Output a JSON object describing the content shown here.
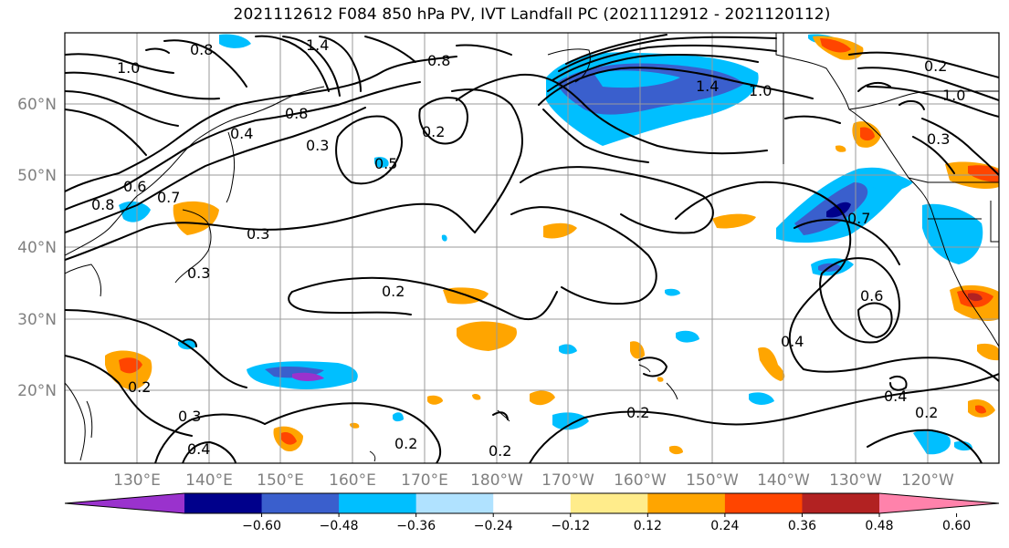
{
  "title": "2021112612 F084 850 hPa PV, IVT Landfall PC (2021112912 - 2021120112)",
  "lat_labels": [
    "60°N",
    "50°N",
    "40°N",
    "30°N",
    "20°N"
  ],
  "lon_labels": [
    "130°E",
    "140°E",
    "150°E",
    "160°E",
    "170°E",
    "180°W",
    "170°W",
    "160°W",
    "150°W",
    "140°W",
    "130°W",
    "120°W"
  ],
  "colorbar": {
    "ticks": [
      "−0.60",
      "−0.48",
      "−0.36",
      "−0.24",
      "−0.12",
      "0.12",
      "0.24",
      "0.36",
      "0.48",
      "0.60"
    ],
    "colors": [
      "#9a32cd",
      "#00008b",
      "#3a5fcd",
      "#00bfff",
      "#b0e2ff",
      "#ffffff",
      "#ffec8b",
      "#ffa500",
      "#ff4500",
      "#b22222",
      "#ff82ab"
    ]
  },
  "contour_labels": [
    "1.0",
    "0.8",
    "1.4",
    "0.8",
    "0.8",
    "0.4",
    "0.3",
    "0.2",
    "1.4",
    "1.0",
    "0.2",
    "1.0",
    "0.3",
    "0.5",
    "0.7",
    "0.8",
    "0.6",
    "0.3",
    "0.3",
    "0.2",
    "0.7",
    "0.6",
    "0.4",
    "0.4",
    "0.2",
    "0.2",
    "0.2",
    "0.2",
    "0.3",
    "0.4",
    "0.2"
  ],
  "colors": {
    "grid": "#9a9a9a",
    "contour": "#000000",
    "axis_text": "#808080"
  }
}
